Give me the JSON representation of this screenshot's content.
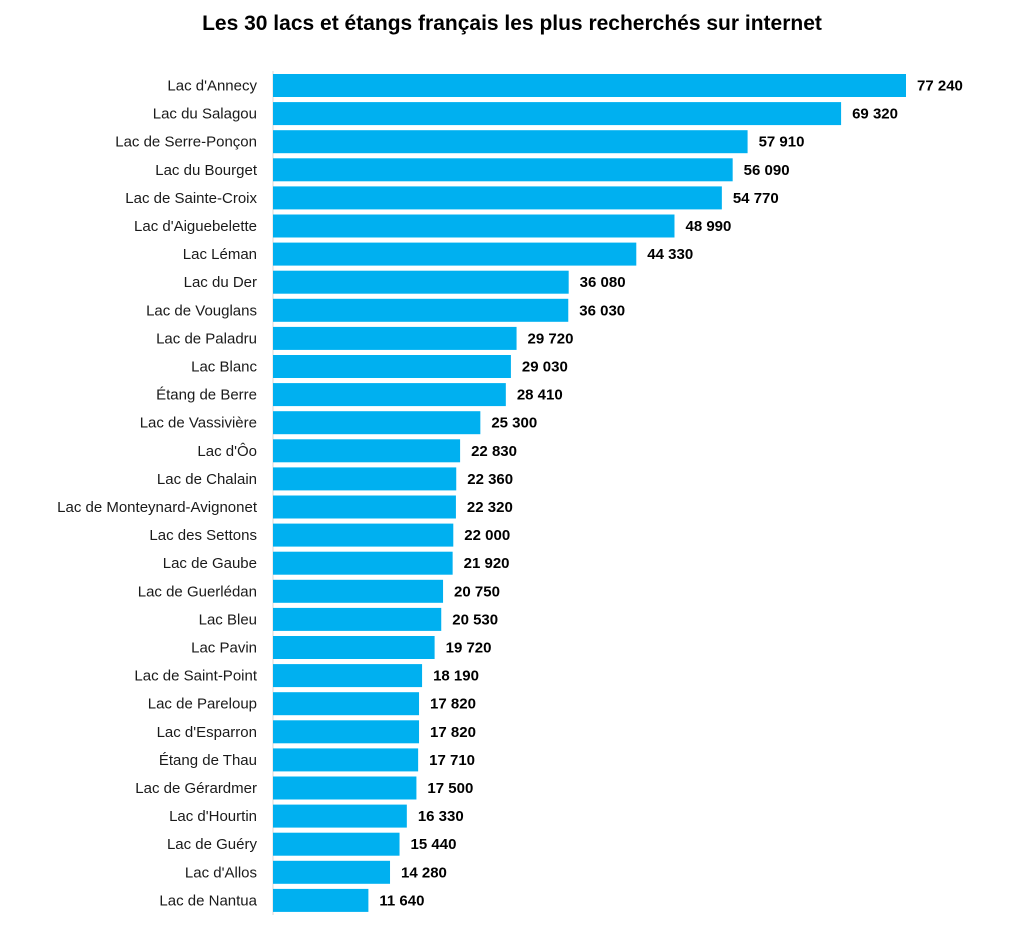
{
  "chart_data": {
    "type": "bar",
    "orientation": "horizontal",
    "title": "Les 30 lacs et étangs français les plus recherchés sur internet",
    "bar_color": "#00b0f0",
    "label_color": "#000000",
    "xlim": [
      0,
      77240
    ],
    "categories": [
      "Lac d'Annecy",
      "Lac du Salagou",
      "Lac de Serre-Ponçon",
      "Lac du Bourget",
      "Lac de Sainte-Croix",
      "Lac d'Aiguebelette",
      "Lac Léman",
      "Lac du Der",
      "Lac de Vouglans",
      "Lac de Paladru",
      "Lac Blanc",
      "Étang de Berre",
      "Lac de Vassivière",
      "Lac d'Ôo",
      "Lac de Chalain",
      "Lac de Monteynard-Avignonet",
      "Lac des Settons",
      "Lac de Gaube",
      "Lac de Guerlédan",
      "Lac Bleu",
      "Lac Pavin",
      "Lac de Saint-Point",
      "Lac de Pareloup",
      "Lac d'Esparron",
      "Étang de Thau",
      "Lac de Gérardmer",
      "Lac d'Hourtin",
      "Lac de Guéry",
      "Lac d'Allos",
      "Lac de Nantua"
    ],
    "values": [
      77240,
      69320,
      57910,
      56090,
      54770,
      48990,
      44330,
      36080,
      36030,
      29720,
      29030,
      28410,
      25300,
      22830,
      22360,
      22320,
      22000,
      21920,
      20750,
      20530,
      19720,
      18190,
      17820,
      17820,
      17710,
      17500,
      16330,
      15440,
      14280,
      11640
    ],
    "value_labels": [
      "77 240",
      "69 320",
      "57 910",
      "56 090",
      "54 770",
      "48 990",
      "44 330",
      "36 080",
      "36 030",
      "29 720",
      "29 030",
      "28 410",
      "25 300",
      "22 830",
      "22 360",
      "22 320",
      "22 000",
      "21 920",
      "20 750",
      "20 530",
      "19 720",
      "18 190",
      "17 820",
      "17 820",
      "17 710",
      "17 500",
      "16 330",
      "15 440",
      "14 280",
      "11 640"
    ],
    "grid": false,
    "legend": "none"
  }
}
